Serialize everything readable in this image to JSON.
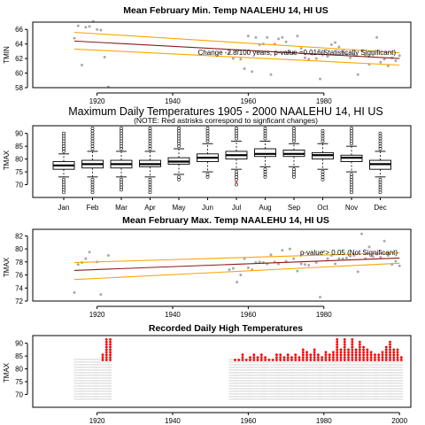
{
  "chart_data": [
    {
      "type": "scatter",
      "title": "Mean February Min. Temp NAALEHU 14, HI US",
      "ylabel": "TMIN",
      "xlim": [
        1903,
        2003
      ],
      "ylim": [
        58,
        67
      ],
      "xticks": [
        1920,
        1940,
        1960,
        1980
      ],
      "yticks": [
        58,
        60,
        62,
        64,
        66
      ],
      "annotation": "Change -2.8/100 years, p-value =0.016(Statistically Significant)",
      "points": [
        {
          "x": 1914,
          "y": 64.8
        },
        {
          "x": 1915,
          "y": 66.5
        },
        {
          "x": 1916,
          "y": 61.1
        },
        {
          "x": 1917,
          "y": 66.3
        },
        {
          "x": 1918,
          "y": 66.4
        },
        {
          "x": 1919,
          "y": 67.1
        },
        {
          "x": 1920,
          "y": 66.0
        },
        {
          "x": 1921,
          "y": 65.9
        },
        {
          "x": 1922,
          "y": 62.2
        },
        {
          "x": 1923,
          "y": 58.1
        },
        {
          "x": 1955,
          "y": 62.8
        },
        {
          "x": 1956,
          "y": 62.0
        },
        {
          "x": 1957,
          "y": 63.1
        },
        {
          "x": 1958,
          "y": 61.9
        },
        {
          "x": 1959,
          "y": 60.6
        },
        {
          "x": 1960,
          "y": 65.1
        },
        {
          "x": 1961,
          "y": 60.2
        },
        {
          "x": 1962,
          "y": 64.9
        },
        {
          "x": 1963,
          "y": 63.9
        },
        {
          "x": 1964,
          "y": 64.0
        },
        {
          "x": 1965,
          "y": 64.9
        },
        {
          "x": 1966,
          "y": 59.8
        },
        {
          "x": 1967,
          "y": 64.0
        },
        {
          "x": 1968,
          "y": 64.7
        },
        {
          "x": 1969,
          "y": 64.9
        },
        {
          "x": 1970,
          "y": 64.3
        },
        {
          "x": 1971,
          "y": 63.0
        },
        {
          "x": 1972,
          "y": 62.8
        },
        {
          "x": 1973,
          "y": 65.1
        },
        {
          "x": 1974,
          "y": 63.4
        },
        {
          "x": 1975,
          "y": 62.1
        },
        {
          "x": 1976,
          "y": 61.9
        },
        {
          "x": 1977,
          "y": 62.6
        },
        {
          "x": 1978,
          "y": 62.0
        },
        {
          "x": 1979,
          "y": 59.2
        },
        {
          "x": 1980,
          "y": 62.8
        },
        {
          "x": 1981,
          "y": 62.3
        },
        {
          "x": 1982,
          "y": 63.9
        },
        {
          "x": 1983,
          "y": 64.2
        },
        {
          "x": 1984,
          "y": 63.6
        },
        {
          "x": 1985,
          "y": 62.9
        },
        {
          "x": 1986,
          "y": 62.6
        },
        {
          "x": 1987,
          "y": 62.1
        },
        {
          "x": 1988,
          "y": 62.5
        },
        {
          "x": 1989,
          "y": 59.8
        },
        {
          "x": 1990,
          "y": 63.1
        },
        {
          "x": 1991,
          "y": 62.4
        },
        {
          "x": 1992,
          "y": 61.2
        },
        {
          "x": 1993,
          "y": 62.5
        },
        {
          "x": 1994,
          "y": 64.9
        },
        {
          "x": 1995,
          "y": 61.5
        },
        {
          "x": 1996,
          "y": 61.9
        },
        {
          "x": 1997,
          "y": 61.0
        },
        {
          "x": 1998,
          "y": 62.1
        },
        {
          "x": 1999,
          "y": 61.7
        },
        {
          "x": 2000,
          "y": 62.4
        }
      ],
      "trend": {
        "x": [
          1914,
          2000
        ],
        "y": [
          64.4,
          62.0
        ]
      },
      "bands": [
        {
          "x": [
            1914,
            2000
          ],
          "y": [
            65.6,
            62.8
          ]
        },
        {
          "x": [
            1914,
            2000
          ],
          "y": [
            63.3,
            61.1
          ]
        }
      ],
      "colors": {
        "points": "#a9a9a9",
        "trend": "#8b1a1a",
        "band": "#ffa500"
      }
    },
    {
      "type": "box",
      "title": "Maximum Daily Temperatures 1905 - 2000 NAALEHU 14, HI US",
      "subtitle": "(NOTE: Red astrisks correspond to signficant changes)",
      "ylabel": "TMAX",
      "ylim": [
        65,
        93
      ],
      "yticks": [
        70,
        75,
        80,
        85,
        90
      ],
      "categories": [
        "Jan",
        "Feb",
        "Mar",
        "Apr",
        "May",
        "Jun",
        "Jul",
        "Aug",
        "Sep",
        "Oct",
        "Nov",
        "Dec"
      ],
      "stats": [
        {
          "min": 73,
          "q1": 76,
          "median": 77.5,
          "q3": 79,
          "max": 82,
          "outliers_high": [
            83,
            84,
            85,
            86,
            87,
            88,
            89,
            90
          ],
          "outliers_low": [
            67,
            68,
            69,
            70,
            71,
            72
          ]
        },
        {
          "min": 73,
          "q1": 76.5,
          "median": 78,
          "q3": 79.5,
          "max": 83,
          "outliers_high": [
            84,
            85,
            86,
            87,
            88,
            89,
            90,
            91,
            92
          ],
          "outliers_low": [
            67,
            68,
            69,
            70,
            71,
            72
          ]
        },
        {
          "min": 73,
          "q1": 76.5,
          "median": 78,
          "q3": 79.5,
          "max": 83,
          "outliers_high": [
            84,
            85,
            86,
            87,
            88,
            89,
            90,
            91,
            92
          ],
          "outliers_low": [
            68,
            69,
            70,
            71,
            72
          ]
        },
        {
          "min": 73,
          "q1": 77,
          "median": 78,
          "q3": 79.5,
          "max": 83,
          "outliers_high": [
            84,
            85,
            86,
            87,
            88,
            89,
            90,
            91,
            92
          ],
          "outliers_low": [
            67,
            68,
            69,
            70,
            71,
            72
          ]
        },
        {
          "min": 74,
          "q1": 78,
          "median": 79,
          "q3": 80.5,
          "max": 84,
          "outliers_high": [
            85,
            86,
            87,
            88,
            89,
            90,
            91,
            92
          ],
          "outliers_low": [
            72,
            73
          ]
        },
        {
          "min": 75,
          "q1": 79,
          "median": 80.5,
          "q3": 82,
          "max": 86,
          "outliers_high": [
            87,
            88,
            89,
            90,
            91,
            92
          ],
          "outliers_low": [
            73,
            74
          ]
        },
        {
          "min": 76,
          "q1": 80,
          "median": 81.5,
          "q3": 83,
          "max": 87,
          "outliers_high": [
            88,
            89,
            90,
            91,
            92
          ],
          "outliers_low": [
            70,
            72,
            73,
            74,
            75
          ]
        },
        {
          "min": 77,
          "q1": 81,
          "median": 82,
          "q3": 84,
          "max": 87,
          "outliers_high": [
            88,
            89,
            90,
            91,
            92
          ],
          "outliers_low": [
            73,
            74,
            75,
            76
          ]
        },
        {
          "min": 77,
          "q1": 81,
          "median": 82,
          "q3": 83.5,
          "max": 86,
          "outliers_high": [
            87,
            88,
            89,
            90,
            91,
            92
          ],
          "outliers_low": [
            73,
            74,
            75,
            76
          ]
        },
        {
          "min": 76,
          "q1": 80,
          "median": 81.5,
          "q3": 82.5,
          "max": 86,
          "outliers_high": [
            87,
            88,
            89,
            90,
            91
          ],
          "outliers_low": [
            72,
            73,
            74,
            75
          ]
        },
        {
          "min": 75,
          "q1": 79,
          "median": 80.5,
          "q3": 81.5,
          "max": 85,
          "outliers_high": [
            86,
            87,
            88,
            89,
            90,
            91,
            92
          ],
          "outliers_low": [
            67,
            68,
            69,
            70,
            71,
            72,
            73,
            74
          ]
        },
        {
          "min": 73,
          "q1": 76,
          "median": 78,
          "q3": 79.5,
          "max": 83,
          "outliers_high": [
            84,
            85,
            86,
            87,
            88,
            89,
            90
          ],
          "outliers_low": [
            67,
            68,
            69,
            70,
            71,
            72
          ]
        }
      ],
      "significant": [
        {
          "category": "Jul",
          "value": 70.5
        }
      ],
      "colors": {
        "significant": "#ff0000"
      }
    },
    {
      "type": "scatter",
      "title": "Mean February Max. Temp NAALEHU 14, HI US",
      "ylabel": "TMAX",
      "xlim": [
        1903,
        2003
      ],
      "ylim": [
        72,
        83
      ],
      "xticks": [
        1920,
        1940,
        1960,
        1980
      ],
      "yticks": [
        72,
        74,
        76,
        78,
        80,
        82
      ],
      "annotation": "p-value > 0.05 (Not Significant)",
      "points": [
        {
          "x": 1914,
          "y": 73.3
        },
        {
          "x": 1915,
          "y": 77.6
        },
        {
          "x": 1916,
          "y": 77.9
        },
        {
          "x": 1917,
          "y": 78.5
        },
        {
          "x": 1918,
          "y": 79.5
        },
        {
          "x": 1920,
          "y": 78.0
        },
        {
          "x": 1921,
          "y": 73.0
        },
        {
          "x": 1923,
          "y": 79.0
        },
        {
          "x": 1955,
          "y": 76.8
        },
        {
          "x": 1956,
          "y": 77.0
        },
        {
          "x": 1957,
          "y": 74.9
        },
        {
          "x": 1958,
          "y": 76.0
        },
        {
          "x": 1959,
          "y": 78.5
        },
        {
          "x": 1960,
          "y": 77.1
        },
        {
          "x": 1961,
          "y": 76.8
        },
        {
          "x": 1962,
          "y": 77.9
        },
        {
          "x": 1963,
          "y": 78.0
        },
        {
          "x": 1964,
          "y": 77.9
        },
        {
          "x": 1965,
          "y": 77.7
        },
        {
          "x": 1966,
          "y": 79.1
        },
        {
          "x": 1967,
          "y": 78.0
        },
        {
          "x": 1968,
          "y": 77.7
        },
        {
          "x": 1969,
          "y": 79.8
        },
        {
          "x": 1970,
          "y": 78.1
        },
        {
          "x": 1971,
          "y": 80.0
        },
        {
          "x": 1972,
          "y": 78.5
        },
        {
          "x": 1973,
          "y": 76.6
        },
        {
          "x": 1974,
          "y": 77.7
        },
        {
          "x": 1975,
          "y": 77.6
        },
        {
          "x": 1976,
          "y": 77.5
        },
        {
          "x": 1978,
          "y": 77.9
        },
        {
          "x": 1979,
          "y": 72.6
        },
        {
          "x": 1980,
          "y": 79.6
        },
        {
          "x": 1981,
          "y": 78.5
        },
        {
          "x": 1982,
          "y": 79.0
        },
        {
          "x": 1983,
          "y": 77.7
        },
        {
          "x": 1984,
          "y": 78.5
        },
        {
          "x": 1985,
          "y": 78.5
        },
        {
          "x": 1986,
          "y": 78.6
        },
        {
          "x": 1987,
          "y": 78.9
        },
        {
          "x": 1988,
          "y": 79.0
        },
        {
          "x": 1989,
          "y": 76.5
        },
        {
          "x": 1990,
          "y": 82.3
        },
        {
          "x": 1991,
          "y": 78.5
        },
        {
          "x": 1992,
          "y": 80.3
        },
        {
          "x": 1993,
          "y": 78.8
        },
        {
          "x": 1994,
          "y": 79.2
        },
        {
          "x": 1995,
          "y": 78.7
        },
        {
          "x": 1996,
          "y": 81.2
        },
        {
          "x": 1997,
          "y": 79.0
        },
        {
          "x": 1998,
          "y": 77.6
        },
        {
          "x": 1999,
          "y": 78.1
        },
        {
          "x": 2000,
          "y": 77.4
        }
      ],
      "trend": {
        "x": [
          1914,
          2000
        ],
        "y": [
          76.7,
          78.6
        ]
      },
      "bands": [
        {
          "x": [
            1914,
            2000
          ],
          "y": [
            77.9,
            79.4
          ]
        },
        {
          "x": [
            1914,
            2000
          ],
          "y": [
            75.3,
            77.8
          ]
        }
      ],
      "colors": {
        "points": "#a9a9a9",
        "trend": "#8b1a1a",
        "band": "#ffa500"
      }
    },
    {
      "type": "scatter",
      "title": "Recorded Daily High Temperatures",
      "ylabel": "TMAX",
      "xlim": [
        1903,
        2003
      ],
      "ylim": [
        65,
        93
      ],
      "xticks": [
        1920,
        1940,
        1960,
        1980,
        2000
      ],
      "yticks": [
        70,
        75,
        80,
        85,
        90
      ],
      "coverage": [
        {
          "from": 1914,
          "to": 1923
        },
        {
          "from": 1955,
          "to": 2000
        }
      ],
      "daily_range": [
        68,
        84
      ],
      "record_threshold": 83.5,
      "record_years": [
        1914,
        1918,
        1920,
        1921,
        1922,
        1923,
        1956,
        1957,
        1958,
        1959,
        1960,
        1961,
        1962,
        1963,
        1964,
        1965,
        1966,
        1967,
        1968,
        1969,
        1970,
        1971,
        1972,
        1973,
        1974,
        1975,
        1976,
        1977,
        1978,
        1979,
        1980,
        1981,
        1982,
        1983,
        1984,
        1985,
        1986,
        1987,
        1988,
        1989,
        1990,
        1991,
        1992,
        1993,
        1994,
        1995,
        1996,
        1997,
        1998,
        1999,
        2000
      ],
      "record_max": [
        83,
        83,
        82,
        86,
        92,
        92,
        84,
        84,
        86,
        84,
        85,
        86,
        85,
        86,
        85,
        84,
        84,
        86,
        86,
        85,
        86,
        85,
        86,
        85,
        88,
        87,
        86,
        88,
        86,
        85,
        87,
        86,
        87,
        92,
        88,
        92,
        88,
        92,
        88,
        91,
        89,
        88,
        87,
        86,
        86,
        87,
        89,
        91,
        88,
        88,
        85
      ],
      "colors": {
        "records": "#ff0000",
        "daily": "#b0b0b0"
      }
    }
  ]
}
